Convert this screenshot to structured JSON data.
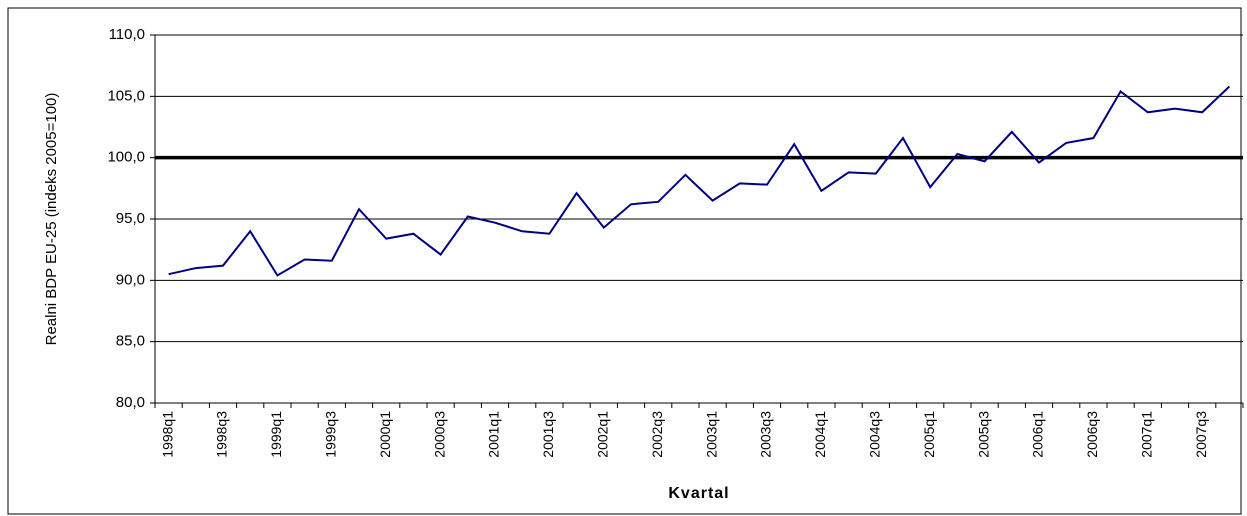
{
  "chart_data": {
    "type": "line",
    "y_label": "Realni BDP EU-25 (indeks 2005=100)",
    "x_label": "Kvartal",
    "categories": [
      "1998q1",
      null,
      "1998q3",
      null,
      "1999q1",
      null,
      "1999q3",
      null,
      "2000q1",
      null,
      "2000q3",
      null,
      "2001q1",
      null,
      "2001q3",
      null,
      "2002q1",
      null,
      "2002q3",
      null,
      "2003q1",
      null,
      "2003q3",
      null,
      "2004q1",
      null,
      "2004q3",
      null,
      "2005q1",
      null,
      "2005q3",
      null,
      "2006q1",
      null,
      "2006q3",
      null,
      "2007q1",
      null,
      "2007q3",
      null
    ],
    "series": [
      {
        "color": "#000080",
        "values": [
          90.5,
          91.0,
          91.2,
          94.0,
          90.4,
          91.7,
          91.6,
          95.8,
          93.4,
          93.8,
          92.1,
          95.2,
          94.7,
          94.0,
          93.8,
          97.1,
          94.3,
          96.2,
          96.4,
          98.6,
          96.5,
          97.9,
          97.8,
          101.1,
          97.3,
          98.8,
          98.7,
          101.6,
          97.6,
          100.3,
          99.7,
          102.1,
          99.6,
          101.2,
          101.6,
          105.4,
          103.7,
          104.0,
          103.7,
          105.8
        ]
      }
    ],
    "reference_line": 100,
    "ylim": [
      80,
      110
    ],
    "yticks": [
      {
        "value": 80,
        "label": "80,0"
      },
      {
        "value": 85,
        "label": "85,0"
      },
      {
        "value": 90,
        "label": "90,0"
      },
      {
        "value": 95,
        "label": "95,0"
      },
      {
        "value": 100,
        "label": "100,0"
      },
      {
        "value": 105,
        "label": "105,0"
      },
      {
        "value": 110,
        "label": "110,0"
      }
    ],
    "grid": true
  }
}
